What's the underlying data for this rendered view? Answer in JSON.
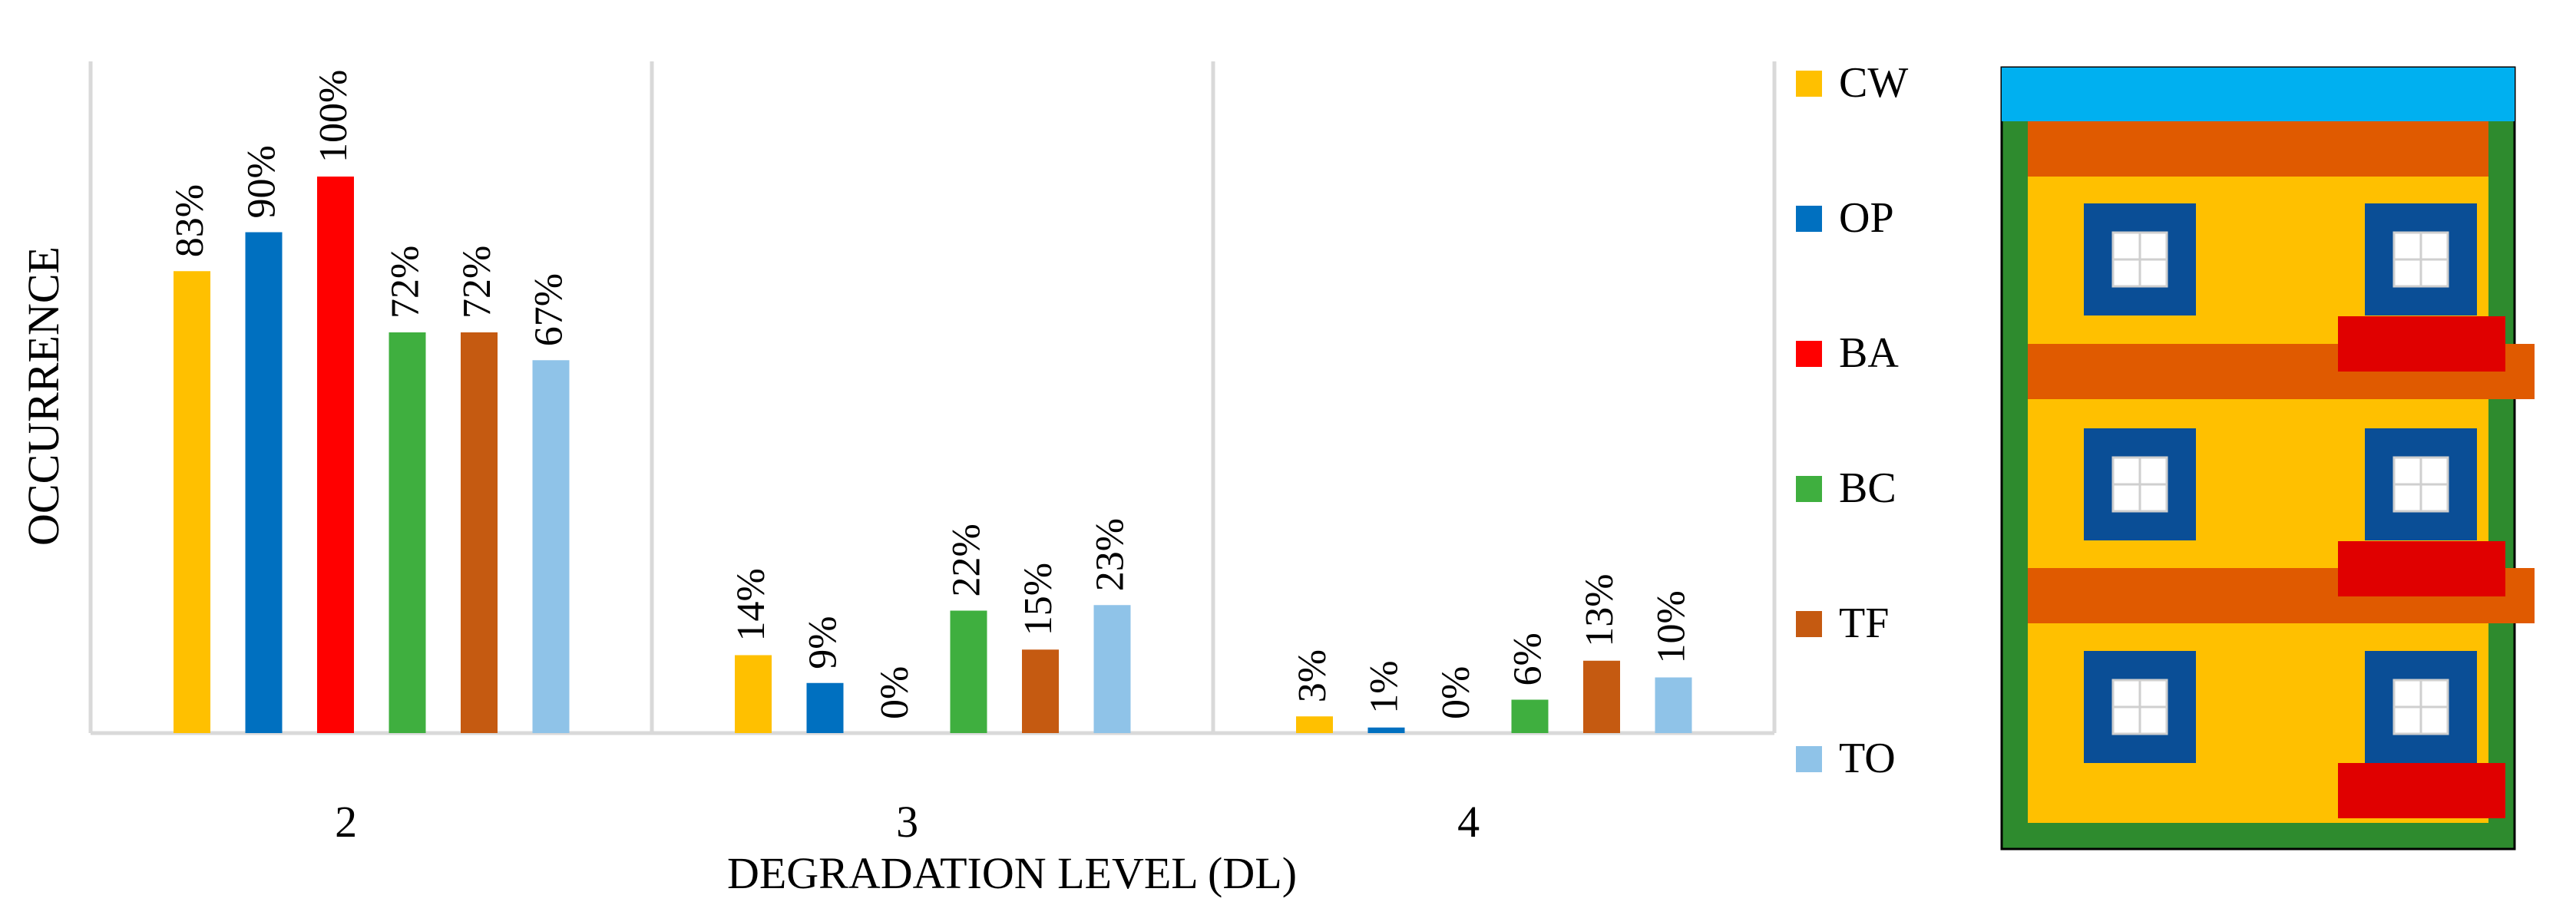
{
  "chart_data": {
    "type": "bar",
    "categories": [
      "2",
      "3",
      "4"
    ],
    "xlabel": "DEGRADATION LEVEL (DL)",
    "ylabel": "OCCURRENCE",
    "ylim": [
      0,
      100
    ],
    "grid": "vertical separators between groups",
    "legend_position": "right",
    "series": [
      {
        "name": "CW",
        "color": "#FFC000",
        "values": [
          83,
          14,
          3
        ],
        "labels": [
          "83%",
          "14%",
          "3%"
        ]
      },
      {
        "name": "OP",
        "color": "#0070C0",
        "values": [
          90,
          9,
          1
        ],
        "labels": [
          "90%",
          "9%",
          "1%"
        ]
      },
      {
        "name": "BA",
        "color": "#FF0000",
        "values": [
          100,
          0,
          0
        ],
        "labels": [
          "100%",
          "0%",
          "0%"
        ]
      },
      {
        "name": "BC",
        "color": "#3FAF3F",
        "values": [
          72,
          22,
          6
        ],
        "labels": [
          "72%",
          "22%",
          "6%"
        ]
      },
      {
        "name": "TF",
        "color": "#C55A11",
        "values": [
          72,
          15,
          13
        ],
        "labels": [
          "72%",
          "15%",
          "13%"
        ]
      },
      {
        "name": "TO",
        "color": "#8FC3E8",
        "values": [
          67,
          23,
          10
        ],
        "labels": [
          "67%",
          "23%",
          "10%"
        ]
      }
    ]
  },
  "illustration": {
    "name": "building-facade-diagram",
    "colors": {
      "top_band": "#00B0F0",
      "frame": "#2E8B2E",
      "wall": "#FFC000",
      "floor_band": "#E05A00",
      "window_frame": "#0A4E96",
      "balcony": "#E00000"
    }
  }
}
